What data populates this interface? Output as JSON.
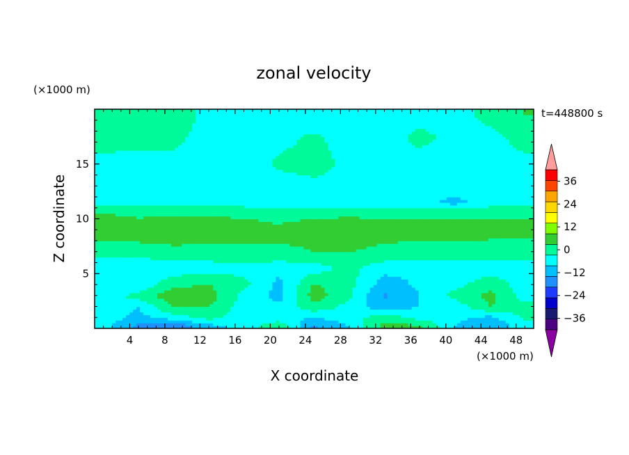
{
  "chart_data": {
    "type": "heatmap",
    "title": "zonal velocity",
    "time_label": "t=448800 s",
    "xlabel": "X coordinate",
    "ylabel": "Z coordinate",
    "x_unit": "(×1000 m)",
    "y_unit": "(×1000 m)",
    "xlim": [
      0,
      50
    ],
    "ylim": [
      0,
      20
    ],
    "x_ticks": [
      "4",
      "8",
      "12",
      "16",
      "20",
      "24",
      "28",
      "32",
      "36",
      "40",
      "44",
      "48"
    ],
    "y_ticks": [
      "5",
      "10",
      "15"
    ],
    "colorbar": {
      "levels": [
        -42,
        -36,
        -30,
        -24,
        -18,
        -12,
        -6,
        0,
        6,
        12,
        18,
        24,
        30,
        36,
        42
      ],
      "tick_labels": [
        "36",
        "24",
        "12",
        "0",
        "−12",
        "−24",
        "−36"
      ],
      "colors": [
        "#4b0082",
        "#191970",
        "#0000cd",
        "#1e3cff",
        "#1e90ff",
        "#00bfff",
        "#00ffff",
        "#00fa9a",
        "#32cd32",
        "#7fff00",
        "#ffff00",
        "#ffd700",
        "#ffa500",
        "#ff4500",
        "#ff0000"
      ],
      "under_color": "#8b00a0",
      "over_color": "#ff9c9c"
    },
    "z_grid": {
      "x": [
        1,
        5,
        9,
        13,
        17,
        21,
        25,
        29,
        33,
        37,
        41,
        45,
        49
      ],
      "z": [
        0.25,
        1,
        2,
        3,
        4,
        5.5,
        7,
        8.5,
        9.5,
        10.5,
        11.5,
        13,
        15,
        17.5,
        19.5
      ],
      "values": [
        [
          -4,
          -14,
          -17,
          -8,
          -4,
          5,
          -13,
          -6,
          8,
          7,
          -6,
          -12,
          -2
        ],
        [
          -2,
          -8,
          -3,
          2,
          -3,
          -4,
          -6,
          -3,
          4,
          -2,
          -4,
          -8,
          1
        ],
        [
          -3,
          -6,
          7,
          6,
          -3,
          -5,
          4,
          -2,
          -10,
          -6,
          -4,
          6,
          2
        ],
        [
          -4,
          3,
          10,
          9,
          -2,
          -8,
          9,
          1,
          -13,
          -6,
          2,
          8,
          -3
        ],
        [
          -6,
          -6,
          5,
          6,
          2,
          -8,
          7,
          2,
          -9,
          -5,
          -2,
          4,
          -3
        ],
        [
          -3,
          -5,
          -4,
          -3,
          -2,
          -4,
          -3,
          2,
          -4,
          -5,
          -4,
          -3,
          -2
        ],
        [
          2,
          3,
          4,
          4,
          5,
          5,
          6,
          6,
          5,
          4,
          4,
          3,
          2
        ],
        [
          8,
          8,
          9,
          8,
          7,
          7,
          7,
          8,
          7,
          7,
          7,
          7,
          7
        ],
        [
          11,
          9,
          10,
          9,
          7,
          6,
          7,
          8,
          7,
          7,
          7,
          7,
          7
        ],
        [
          6,
          4,
          5,
          5,
          5,
          5,
          5,
          5,
          5,
          5,
          5,
          5,
          5
        ],
        [
          -1,
          -2,
          -3,
          -2,
          -3,
          -5,
          -6,
          -4,
          -3,
          -4,
          -8,
          -3,
          -2
        ],
        [
          -4,
          -3,
          -3,
          -3,
          -3,
          -3,
          -2,
          -3,
          -3,
          -3,
          -3,
          -3,
          -2
        ],
        [
          -3,
          -3,
          -2,
          -4,
          -3,
          1,
          3,
          -2,
          -3,
          -3,
          -2,
          -4,
          -3
        ],
        [
          4,
          3,
          2,
          -3,
          -3,
          -2,
          1,
          -3,
          -3,
          2,
          -2,
          -3,
          4
        ],
        [
          5,
          5,
          4,
          -2,
          -3,
          -3,
          -4,
          -3,
          -3,
          -3,
          -4,
          3,
          6
        ]
      ]
    }
  }
}
